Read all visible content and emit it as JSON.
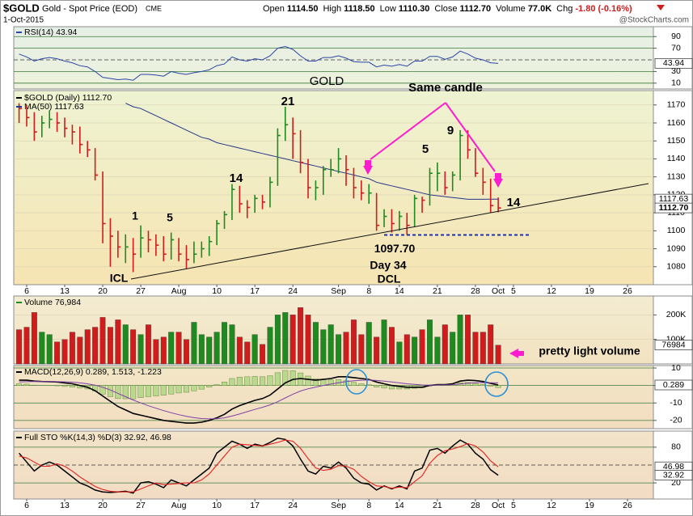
{
  "chart_data": {
    "type": "ohlc",
    "symbol": "$GOLD",
    "name": "Gold - Spot Price (EOD)",
    "exchange": "CME",
    "date": "1-Oct-2015",
    "watermark": "@StockCharts.com",
    "quote": [
      {
        "label": "Open",
        "value": "1114.50"
      },
      {
        "label": "High",
        "value": "1118.50"
      },
      {
        "label": "Low",
        "value": "1110.30"
      },
      {
        "label": "Close",
        "value": "1112.70"
      },
      {
        "label": "Volume",
        "value": "77.0K"
      },
      {
        "label": "Chg",
        "value": "-1.80 (-0.16%)"
      }
    ],
    "xlim": [
      -0.7,
      83.4
    ],
    "xticks": [
      {
        "value": 1,
        "label": "6"
      },
      {
        "value": 6,
        "label": "13"
      },
      {
        "value": 11,
        "label": "20"
      },
      {
        "value": 16,
        "label": "27"
      },
      {
        "value": 21,
        "label": "Aug"
      },
      {
        "value": 26,
        "label": "10"
      },
      {
        "value": 31,
        "label": "17"
      },
      {
        "value": 36,
        "label": "24"
      },
      {
        "value": 42,
        "label": "Sep"
      },
      {
        "value": 46,
        "label": "8"
      },
      {
        "value": 50,
        "label": "14"
      },
      {
        "value": 55,
        "label": "21"
      },
      {
        "value": 60,
        "label": "28"
      },
      {
        "value": 63,
        "label": "Oct"
      },
      {
        "value": 65,
        "label": "5"
      },
      {
        "value": 70,
        "label": "12"
      },
      {
        "value": 75,
        "label": "19"
      },
      {
        "value": 80,
        "label": "26"
      }
    ],
    "panels": {
      "rsi": {
        "legend": "RSI(14) 43.94",
        "ylim": [
          0,
          107
        ],
        "yticks": [
          10,
          30,
          70,
          90
        ],
        "midline": 50,
        "series": [
          {
            "color": "#2b45a8",
            "values": [
              60,
              55,
              48,
              52,
              54,
              52,
              48,
              45,
              40,
              38,
              30,
              20,
              18,
              16,
              17,
              15,
              25,
              25,
              24,
              22,
              30,
              27,
              25,
              28,
              30,
              33,
              40,
              43,
              55,
              50,
              48,
              52,
              50,
              57,
              70,
              73,
              68,
              57,
              48,
              48,
              54,
              54,
              57,
              53,
              47,
              46,
              46,
              38,
              41,
              39,
              42,
              39,
              48,
              48,
              56,
              56,
              51,
              55,
              65,
              60,
              53,
              50,
              45,
              43.94
            ]
          }
        ],
        "tags": [
          {
            "value": 43.94,
            "label": "43.94"
          }
        ]
      },
      "price": {
        "legend": [
          "$GOLD (Daily) 1112.70",
          "MA(50) 1117.63"
        ],
        "ylim": [
          1070,
          1178
        ],
        "yticks": [
          1080,
          1090,
          1100,
          1110,
          1120,
          1130,
          1140,
          1150,
          1160,
          1170
        ],
        "grid": true,
        "up_color": "#1f8a1f",
        "down_color": "#d01c1c",
        "high": [
          1171,
          1170,
          1166,
          1164,
          1167,
          1166,
          1163,
          1159,
          1158,
          1150,
          1146,
          1133,
          1107,
          1100,
          1098,
          1096,
          1103,
          1100,
          1098,
          1097,
          1099,
          1096,
          1092,
          1094,
          1094,
          1097,
          1106,
          1111,
          1126,
          1125,
          1117,
          1120,
          1120,
          1130,
          1157,
          1169,
          1163,
          1156,
          1140,
          1128,
          1136,
          1140,
          1146,
          1142,
          1135,
          1128,
          1126,
          1121,
          1112,
          1112,
          1111,
          1110,
          1120,
          1119,
          1135,
          1138,
          1133,
          1133,
          1156,
          1156,
          1146,
          1135,
          1129,
          1118.5
        ],
        "low": [
          1160,
          1158,
          1150,
          1152,
          1157,
          1155,
          1152,
          1148,
          1143,
          1141,
          1128,
          1093,
          1080,
          1085,
          1082,
          1077,
          1085,
          1088,
          1086,
          1083,
          1084,
          1083,
          1079,
          1082,
          1085,
          1086,
          1092,
          1101,
          1106,
          1110,
          1107,
          1110,
          1112,
          1113,
          1125,
          1150,
          1140,
          1132,
          1118,
          1117,
          1120,
          1130,
          1132,
          1125,
          1118,
          1117,
          1115,
          1100,
          1102,
          1099,
          1100,
          1097.7,
          1102,
          1110,
          1114,
          1122,
          1120,
          1122,
          1128,
          1140,
          1130,
          1120,
          1110,
          1110.3
        ],
        "close": [
          1168,
          1163,
          1155,
          1160,
          1162,
          1160,
          1157,
          1155,
          1148,
          1145,
          1131,
          1104,
          1097,
          1091,
          1091,
          1087,
          1096,
          1095,
          1092,
          1087,
          1095,
          1087,
          1084,
          1087,
          1090,
          1094,
          1104,
          1109,
          1123,
          1115,
          1113,
          1118,
          1116,
          1127,
          1153,
          1159,
          1154,
          1138,
          1124,
          1124,
          1134,
          1134,
          1140,
          1134,
          1124,
          1121,
          1121,
          1103,
          1108,
          1104,
          1108,
          1103,
          1118,
          1117,
          1132,
          1132,
          1124,
          1131,
          1153,
          1145,
          1132,
          1127,
          1114,
          1112.7
        ],
        "ma": {
          "color": "#26348c",
          "values": [
            null,
            null,
            null,
            null,
            null,
            null,
            null,
            null,
            null,
            null,
            null,
            null,
            null,
            null,
            1171,
            1169,
            1168,
            1166,
            1164,
            1162,
            1160,
            1158,
            1156,
            1154,
            1152,
            1151,
            1149,
            1148,
            1147,
            1146,
            1145,
            1144,
            1143,
            1142,
            1141,
            1140,
            1139,
            1138,
            1137,
            1136,
            1135,
            1134,
            1133,
            1132,
            1131,
            1130,
            1129,
            1127,
            1126,
            1125,
            1124,
            1123,
            1122,
            1121,
            1120,
            1119.5,
            1119,
            1118.5,
            1118,
            1117.5,
            1117.5,
            1117.5,
            1117.6,
            1117.63
          ]
        },
        "tags": [
          {
            "value": 1117.63,
            "label": "1117.63"
          },
          {
            "value": 1112.7,
            "label": "1112.70"
          }
        ],
        "support": {
          "value": 1097.7,
          "label": "1097.70",
          "color": "#1c2fb0"
        }
      },
      "volume": {
        "legend": "Volume 76,984",
        "ylim": [
          0,
          277
        ],
        "yticks": [
          {
            "value": 100,
            "label": "100K"
          },
          {
            "value": 200,
            "label": "200K"
          }
        ],
        "values": [
          140,
          150,
          210,
          130,
          120,
          90,
          100,
          130,
          110,
          140,
          150,
          190,
          150,
          180,
          160,
          140,
          120,
          160,
          100,
          110,
          130,
          130,
          100,
          170,
          120,
          110,
          130,
          170,
          160,
          110,
          90,
          120,
          80,
          150,
          200,
          210,
          200,
          230,
          200,
          170,
          140,
          160,
          120,
          130,
          180,
          120,
          170,
          110,
          180,
          150,
          90,
          120,
          110,
          140,
          180,
          110,
          160,
          130,
          200,
          200,
          130,
          130,
          160,
          76.984
        ],
        "tags": [
          {
            "value": 76.984,
            "label": "76984"
          }
        ]
      },
      "macd": {
        "legend": "MACD(12,26,9) 0.289, 1.513, -1.223",
        "ylim": [
          -24.7,
          11.4
        ],
        "yticks": [
          -20,
          -10,
          0,
          10
        ],
        "histogram": {
          "color": "#b9d98f",
          "values": [
            1,
            0.8,
            0.2,
            0,
            -0.1,
            -0.2,
            -0.6,
            -0.9,
            -1.5,
            -2,
            -3.2,
            -5,
            -6.4,
            -7.5,
            -7.6,
            -7.7,
            -7,
            -6.4,
            -6,
            -5.6,
            -4.9,
            -4.3,
            -3.9,
            -3.1,
            -2.1,
            -0.9,
            0.5,
            2,
            4,
            4.8,
            5,
            5.2,
            5,
            5.6,
            7.3,
            8.6,
            8.5,
            7.2,
            5.4,
            3.9,
            3.5,
            3.2,
            3.4,
            2.7,
            1.8,
            1,
            0.4,
            -0.9,
            -1.5,
            -2,
            -2,
            -2,
            -1.6,
            -1.3,
            -0.2,
            0.2,
            0.2,
            0.5,
            1.6,
            1.7,
            1.2,
            0.6,
            -0.4,
            -1.223
          ]
        },
        "series": [
          {
            "color": "#000000",
            "values": [
              3,
              3,
              2.5,
              2.3,
              2.2,
              2,
              1.5,
              1,
              0,
              -1,
              -3,
              -6,
              -9,
              -12,
              -14,
              -16,
              -17,
              -18,
              -19,
              -20,
              -20.5,
              -21,
              -21.5,
              -21.5,
              -21,
              -20,
              -18.5,
              -16.5,
              -13.5,
              -11.5,
              -10,
              -8.5,
              -7.5,
              -5.5,
              -2,
              1.5,
              3.5,
              4,
              3.5,
              3,
              3.5,
              4,
              5,
              5,
              4.5,
              4,
              3.5,
              2,
              1,
              0,
              -0.5,
              -1,
              -1,
              -1,
              0,
              0.5,
              0.5,
              1,
              2.5,
              3,
              2.8,
              2.3,
              1.2,
              0.289
            ]
          },
          {
            "color": "#8040a8",
            "values": [
              2,
              2.2,
              2.3,
              2.3,
              2.3,
              2.2,
              2.1,
              1.9,
              1.5,
              1,
              0.2,
              -1,
              -2.6,
              -4.5,
              -6.4,
              -8.3,
              -10,
              -11.6,
              -13,
              -14.4,
              -15.6,
              -16.7,
              -17.6,
              -18.4,
              -18.9,
              -19.1,
              -19,
              -18.5,
              -17.5,
              -16.3,
              -15,
              -13.7,
              -12.5,
              -11.1,
              -9.3,
              -7.1,
              -5,
              -3.2,
              -1.9,
              -0.9,
              0,
              0.8,
              1.6,
              2.3,
              2.7,
              3,
              3.1,
              2.9,
              2.5,
              2,
              1.5,
              1,
              0.6,
              0.3,
              0.2,
              0.3,
              0.3,
              0.5,
              0.9,
              1.3,
              1.6,
              1.7,
              1.6,
              1.513
            ]
          }
        ],
        "tags": [
          {
            "value": 0.289,
            "label": "0.289"
          }
        ]
      },
      "sto": {
        "legend": "Full STO %K(14,3) %D(3) 32.92, 46.98",
        "ylim": [
          -7,
          107
        ],
        "yticks": [
          20,
          80
        ],
        "midline": 50,
        "series": [
          {
            "color": "#000000",
            "values": [
              70,
              55,
              40,
              50,
              55,
              50,
              40,
              30,
              20,
              15,
              8,
              5,
              4,
              5,
              6,
              3,
              20,
              22,
              18,
              12,
              25,
              20,
              15,
              25,
              35,
              45,
              70,
              80,
              90,
              85,
              78,
              85,
              82,
              88,
              95,
              93,
              82,
              60,
              40,
              35,
              48,
              45,
              55,
              45,
              28,
              20,
              18,
              8,
              15,
              10,
              15,
              10,
              40,
              45,
              75,
              78,
              70,
              82,
              92,
              85,
              70,
              60,
              42,
              32.92
            ]
          },
          {
            "color": "#e02020",
            "values": [
              65,
              62,
              55,
              48,
              48,
              52,
              48,
              40,
              30,
              22,
              14,
              9,
              6,
              5,
              5,
              5,
              10,
              15,
              20,
              17,
              18,
              19,
              20,
              20,
              25,
              35,
              50,
              65,
              80,
              85,
              84,
              83,
              82,
              85,
              88,
              92,
              90,
              78,
              61,
              45,
              41,
              43,
              49,
              48,
              43,
              31,
              22,
              15,
              14,
              11,
              13,
              12,
              22,
              32,
              53,
              66,
              74,
              77,
              81,
              86,
              82,
              72,
              57,
              46.98
            ]
          }
        ],
        "tags": [
          {
            "value": 46.98,
            "label": "46.98"
          },
          {
            "value": 32.92,
            "label": "32.92"
          }
        ]
      }
    },
    "annotations": [
      {
        "text": "GOLD",
        "color": "#a033d0"
      },
      {
        "text": "Same candle",
        "color": "#b733e0"
      },
      {
        "text": "21",
        "color": "#000000"
      },
      {
        "text": "14",
        "color": "#000000"
      },
      {
        "text": "1",
        "color": "#000000"
      },
      {
        "text": "5",
        "color": "#000000"
      },
      {
        "text": "5",
        "color": "#1c2fb0"
      },
      {
        "text": "9",
        "color": "#1c2fb0"
      },
      {
        "text": "ICL",
        "color": "#000000"
      },
      {
        "text": "Day 34",
        "color": "#000000"
      },
      {
        "text": "DCL",
        "color": "#000000"
      },
      {
        "text": "14",
        "color": "#1c2fb0"
      },
      {
        "text": "pretty light volume",
        "color": "#e0209a"
      }
    ]
  }
}
